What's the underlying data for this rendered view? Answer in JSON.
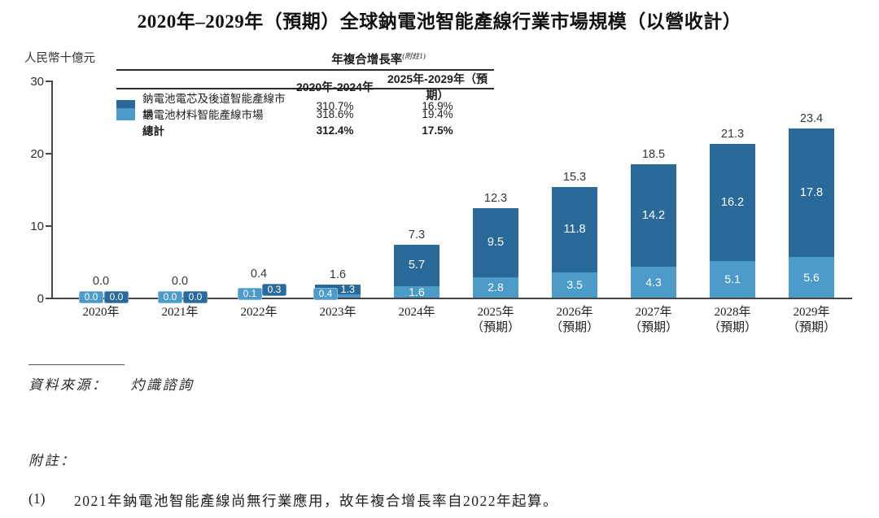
{
  "title": "2020年–2029年（預期）全球鈉電池智能產線行業市場規模（以營收計）",
  "chart_data": {
    "type": "bar",
    "stacked": true,
    "title": "2020年–2029年（預期）全球鈉電池智能產線行業市場規模（以營收計）",
    "unit_label": "人民幣十億元",
    "ylim": [
      0,
      30
    ],
    "yticks": [
      0,
      10,
      20,
      30
    ],
    "grid": false,
    "categories": [
      "2020年",
      "2021年",
      "2022年",
      "2023年",
      "2024年",
      "2025年",
      "2026年",
      "2027年",
      "2028年",
      "2029年"
    ],
    "category_sublabels": [
      "",
      "",
      "",
      "",
      "",
      "（預期）",
      "（預期）",
      "（預期）",
      "（預期）",
      "（預期）"
    ],
    "series": [
      {
        "name": "鈉電池電芯及後道智能產線市場",
        "color": "#2a6a9b",
        "values": [
          0.0,
          0.0,
          0.3,
          1.3,
          5.7,
          9.5,
          11.8,
          14.2,
          16.2,
          17.8
        ]
      },
      {
        "name": "鈉電池材料智能產線市場",
        "color": "#4d9bc9",
        "values": [
          0.0,
          0.0,
          0.1,
          0.4,
          1.6,
          2.8,
          3.5,
          4.3,
          5.1,
          5.6
        ]
      }
    ],
    "totals": [
      0.0,
      0.0,
      0.4,
      1.6,
      7.3,
      12.3,
      15.3,
      18.5,
      21.3,
      23.4
    ],
    "cagr_table": {
      "header": "年複合增長率",
      "header_note": "(附註1)",
      "columns": [
        "2020年-2024年",
        "2025年-2029年（預期）"
      ],
      "rows": [
        {
          "label": "鈉電池電芯及後道智能產線市場",
          "swatch": "#2a6a9b",
          "values": [
            "310.7%",
            "16.9%"
          ],
          "bold": false
        },
        {
          "label": "鈉電池材料智能產線市場",
          "swatch": "#4d9bc9",
          "values": [
            "318.6%",
            "19.4%"
          ],
          "bold": false
        },
        {
          "label": "總計",
          "swatch": null,
          "values": [
            "312.4%",
            "17.5%"
          ],
          "bold": true
        }
      ]
    }
  },
  "footer": {
    "source_label": "資料來源：",
    "source_value": "灼識諮詢",
    "notes_label": "附註：",
    "note_number": "(1)",
    "note_text": "2021年鈉電池智能產線尚無行業應用，故年複合增長率自2022年起算。"
  }
}
